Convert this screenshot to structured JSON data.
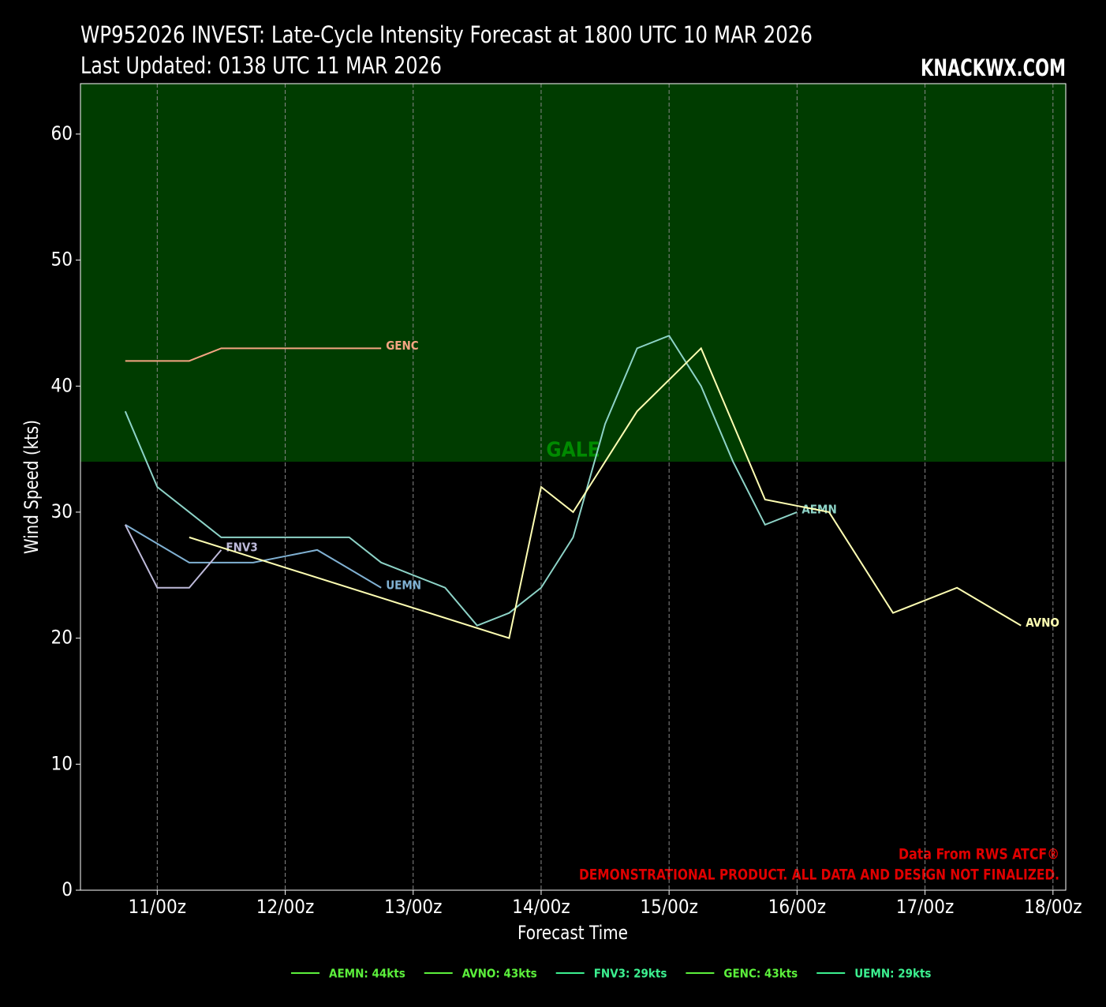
{
  "chart_data": {
    "type": "line",
    "title": "WP952026 INVEST: Late-Cycle Intensity Forecast at 1800 UTC 10 MAR 2026",
    "subtitle": "Last Updated: 0138 UTC 11 MAR 2026",
    "brand": "KNACKWX.COM",
    "x_label": "Forecast Time",
    "y_label": "Wind Speed (kts)",
    "source_note": "Data From RWS ATCF®",
    "disclaimer": "DEMONSTRATIONAL PRODUCT. ALL DATA AND DESIGN NOT FINALIZED.",
    "xlim": [
      -8.4,
      176.4
    ],
    "xticks": [
      {
        "value": 6,
        "label": "11/00z"
      },
      {
        "value": 30,
        "label": "12/00z"
      },
      {
        "value": 54,
        "label": "13/00z"
      },
      {
        "value": 78,
        "label": "14/00z"
      },
      {
        "value": 102,
        "label": "15/00z"
      },
      {
        "value": 126,
        "label": "16/00z"
      },
      {
        "value": 150,
        "label": "17/00z"
      },
      {
        "value": 174,
        "label": "18/00z"
      }
    ],
    "ylim": [
      0,
      64
    ],
    "yticks": [
      0,
      10,
      20,
      30,
      40,
      50,
      60
    ],
    "grid": true,
    "bands": [
      {
        "label": "GALE",
        "from": 34,
        "to": 64,
        "color": "#003c00",
        "label_color": "#008a00"
      }
    ],
    "series": [
      {
        "name": "GENC",
        "color": "#f4a582",
        "x": [
          0,
          6,
          12,
          18,
          24,
          30,
          36,
          42,
          48
        ],
        "values": [
          42,
          42,
          42,
          43,
          43,
          43,
          43,
          43,
          43
        ]
      },
      {
        "name": "AEMN",
        "color": "#8dd3c7",
        "x": [
          0,
          6,
          12,
          18,
          24,
          30,
          36,
          42,
          48,
          54,
          60,
          66,
          72,
          78,
          84,
          90,
          96,
          102,
          108,
          114,
          120,
          126
        ],
        "values": [
          38,
          32,
          30,
          28,
          28,
          28,
          28,
          28,
          26,
          25,
          24,
          21,
          22,
          24,
          28,
          37,
          43,
          44,
          40,
          34,
          29,
          30
        ]
      },
      {
        "name": "UEMN",
        "color": "#80b1d3",
        "x": [
          0,
          6,
          12,
          18,
          24,
          30,
          36,
          42,
          48
        ],
        "values": [
          29,
          27.5,
          26,
          26,
          26,
          26.5,
          27,
          25.5,
          24
        ]
      },
      {
        "name": "FNV3",
        "color": "#bebada",
        "x": [
          0,
          6,
          12,
          18
        ],
        "values": [
          29,
          24,
          24,
          27
        ]
      },
      {
        "name": "AVNO",
        "color": "#ffffb3",
        "x": [
          12,
          72,
          78,
          84,
          96,
          108,
          120,
          132,
          144,
          156,
          168
        ],
        "values": [
          28,
          20,
          32,
          30,
          38,
          43,
          31,
          30,
          22,
          24,
          21
        ]
      }
    ],
    "legend_entries": [
      {
        "label": "AEMN: 44kts",
        "color": "#5cf03c"
      },
      {
        "label": "AVNO: 43kts",
        "color": "#5cf03c"
      },
      {
        "label": "FNV3: 29kts",
        "color": "#3cf090"
      },
      {
        "label": "GENC: 43kts",
        "color": "#5cf03c"
      },
      {
        "label": "UEMN: 29kts",
        "color": "#3cf090"
      }
    ]
  }
}
